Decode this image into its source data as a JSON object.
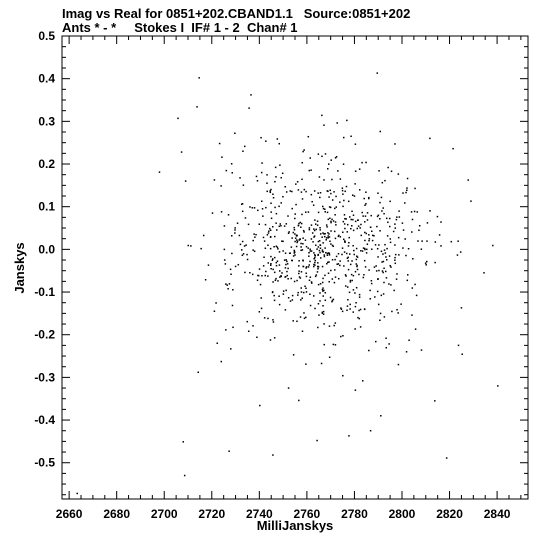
{
  "header": {
    "line1": "Imag vs Real for 0851+202.CBAND1.1   Source:0851+202",
    "line2": "Ants * - *     Stokes I  IF# 1 - 2  Chan# 1"
  },
  "chart_data": {
    "type": "scatter",
    "title": "Imag vs Real for 0851+202.CBAND1.1   Source:0851+202",
    "subtitle": "Ants * - *     Stokes I  IF# 1 - 2  Chan# 1",
    "xlabel": "MilliJanskys",
    "ylabel": "Janskys",
    "xlim": [
      2657,
      2853
    ],
    "ylim": [
      -0.585,
      0.5
    ],
    "grid": false,
    "x_ticks": [
      2660,
      2680,
      2700,
      2720,
      2740,
      2760,
      2780,
      2800,
      2820,
      2840
    ],
    "y_ticks": [
      0.5,
      0.4,
      0.3,
      0.2,
      0.1,
      0.0,
      -0.1,
      -0.2,
      -0.3,
      -0.4,
      -0.5
    ],
    "x_tick_labels": [
      "2660",
      "2680",
      "2700",
      "2720",
      "2740",
      "2760",
      "2780",
      "2800",
      "2820",
      "2840"
    ],
    "y_tick_labels": [
      "0.5",
      "0.4",
      "0.3",
      "0.2",
      "0.1",
      "0.0",
      "-0.1",
      "-0.2",
      "-0.3",
      "-0.4",
      "-0.5"
    ],
    "series": [
      {
        "x": [
          2663.4,
          2698.0,
          2705.8,
          2707.3,
          2708.0,
          2708.6,
          2709.0,
          2710.1,
          2711.2,
          2713.8,
          2714.3,
          2714.7,
          2718.6,
          2720.3,
          2721.1,
          2722.3,
          2723.3,
          2724.0,
          2727.3,
          2729.7,
          2733.1,
          2735.7,
          2736.5,
          2740.2,
          2741.0,
          2745.7,
          2747.0,
          2752.3,
          2756.6,
          2760.6,
          2764.3,
          2766.3,
          2769.5,
          2772.5,
          2775.5,
          2777.7,
          2778.6,
          2780.4,
          2783.5,
          2786.8,
          2789.6,
          2791.1,
          2795.6,
          2798.5,
          2803.0,
          2808.2,
          2810.7,
          2813.8,
          2816.4,
          2818.8,
          2821.5,
          2825.0,
          2829.0,
          2834.5,
          2838.2,
          2840.3
        ],
        "y": [
          -0.572,
          0.181,
          0.307,
          0.228,
          -0.451,
          -0.53,
          0.16,
          0.009,
          0.008,
          0.334,
          -0.288,
          0.402,
          -0.037,
          0.085,
          -0.145,
          -0.22,
          0.248,
          -0.263,
          -0.473,
          0.272,
          0.23,
          0.331,
          0.362,
          -0.366,
          0.18,
          -0.482,
          0.17,
          -0.325,
          -0.354,
          0.264,
          -0.448,
          0.314,
          -0.18,
          0.217,
          0.262,
          -0.437,
          0.265,
          -0.33,
          -0.308,
          -0.425,
          0.413,
          -0.39,
          0.183,
          -0.27,
          -0.213,
          -0.236,
          0.062,
          -0.355,
          0.064,
          -0.489,
          0.236,
          -0.137,
          0.113,
          -0.055,
          0.009,
          -0.32
        ]
      }
    ]
  }
}
